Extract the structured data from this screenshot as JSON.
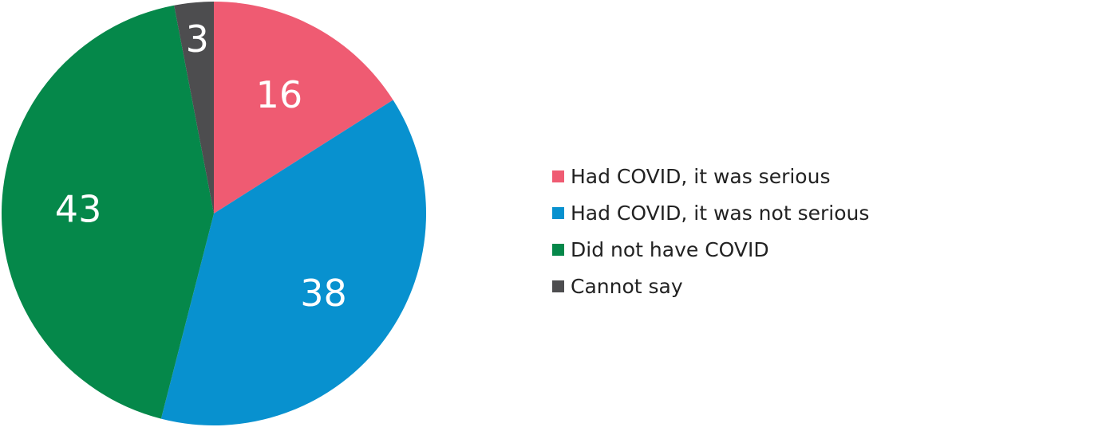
{
  "chart_data": {
    "type": "pie",
    "categories": [
      "Had COVID, it was serious",
      "Had COVID, it was not serious",
      "Did not have COVID",
      "Cannot say"
    ],
    "values": [
      16,
      38,
      43,
      3
    ],
    "data_labels": [
      "16",
      "38",
      "43",
      "3"
    ],
    "colors": [
      "#ef5b72",
      "#0891cf",
      "#05884a",
      "#4d4d4f"
    ],
    "legend_position": "right"
  }
}
